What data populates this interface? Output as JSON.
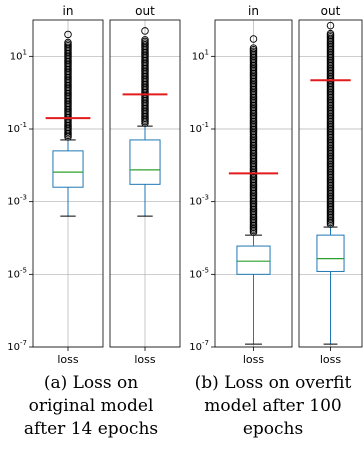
{
  "chart_data": [
    {
      "type": "box",
      "yscale": "log",
      "ylim": [
        1e-07,
        100
      ],
      "ytick_labels": [
        "10^-7",
        "10^-5",
        "10^-3",
        "10^-1",
        "10^1"
      ],
      "grid": true,
      "caption": [
        "(a) Loss on",
        "original model",
        "after 14 epochs"
      ],
      "panels": [
        {
          "title": "in",
          "xtick": "loss",
          "whisker_low": 0.0004,
          "q1": 0.0025,
          "median": 0.0065,
          "q3": 0.025,
          "whisker_high": 0.05,
          "flier_max": 40,
          "mean": 0.2
        },
        {
          "title": "out",
          "xtick": "loss",
          "whisker_low": 0.0004,
          "q1": 0.003,
          "median": 0.0075,
          "q3": 0.05,
          "whisker_high": 0.12,
          "flier_max": 50,
          "mean": 0.9
        }
      ]
    },
    {
      "type": "box",
      "yscale": "log",
      "ylim": [
        1e-07,
        100
      ],
      "ytick_labels": [
        "10^-7",
        "10^-5",
        "10^-3",
        "10^-1",
        "10^1"
      ],
      "grid": true,
      "caption": [
        "(b) Loss on overfit",
        "model after 100",
        "epochs"
      ],
      "panels": [
        {
          "title": "in",
          "xtick": "loss",
          "whisker_low": 1.2e-07,
          "q1": 1e-05,
          "median": 2.3e-05,
          "q3": 6e-05,
          "whisker_high": 0.00012,
          "flier_max": 30,
          "mean": 0.006
        },
        {
          "title": "out",
          "xtick": "loss",
          "whisker_low": 1.2e-07,
          "q1": 1.2e-05,
          "median": 2.7e-05,
          "q3": 0.00012,
          "whisker_high": 0.0002,
          "flier_max": 70,
          "mean": 2.2
        }
      ]
    }
  ],
  "style": {
    "box_color": "#1f77b4",
    "median_color": "#2ca02c",
    "mean_color": "#e31a1c",
    "grid_color": "#b0b0b0",
    "axis_color": "#000000",
    "flier_color": "#000000"
  }
}
